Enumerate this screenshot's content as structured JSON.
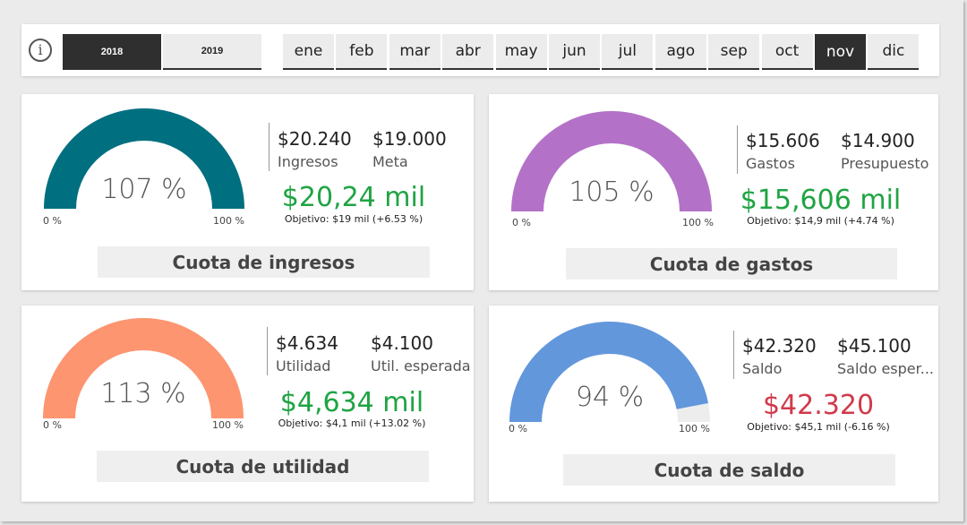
{
  "colors": {
    "ingresos": "#006f7f",
    "gastos": "#b372c7",
    "utilidad": "#fd9570",
    "saldo": "#6297dc",
    "gauge_track": "#ededed",
    "positive": "#1fa443",
    "negative": "#d13a4a"
  },
  "toolbar": {
    "info_icon": "info-icon",
    "years": [
      {
        "label": "2018",
        "selected": true
      },
      {
        "label": "2019",
        "selected": false
      }
    ],
    "months": [
      {
        "label": "ene",
        "selected": false
      },
      {
        "label": "feb",
        "selected": false
      },
      {
        "label": "mar",
        "selected": false
      },
      {
        "label": "abr",
        "selected": false
      },
      {
        "label": "may",
        "selected": false
      },
      {
        "label": "jun",
        "selected": false
      },
      {
        "label": "jul",
        "selected": false
      },
      {
        "label": "ago",
        "selected": false
      },
      {
        "label": "sep",
        "selected": false
      },
      {
        "label": "oct",
        "selected": false
      },
      {
        "label": "nov",
        "selected": true
      },
      {
        "label": "dic",
        "selected": false
      }
    ]
  },
  "cards": {
    "ingresos": {
      "title": "Cuota de ingresos",
      "gauge_pct_label": "107 %",
      "gauge_fill": 1.0,
      "gauge_min": "0 %",
      "gauge_max": "100 %",
      "value": "$20.240",
      "value_label": "Ingresos",
      "target": "$19.000",
      "target_label": "Meta",
      "big_value": "$20,24 mil",
      "big_value_status": "positive",
      "objetivo": "Objetivo: $19 mil (+6.53 %)"
    },
    "gastos": {
      "title": "Cuota de gastos",
      "gauge_pct_label": "105 %",
      "gauge_fill": 1.0,
      "gauge_min": "0 %",
      "gauge_max": "100 %",
      "value": "$15.606",
      "value_label": "Gastos",
      "target": "$14.900",
      "target_label": "Presupuesto",
      "big_value": "$15,606 mil",
      "big_value_status": "positive",
      "objetivo": "Objetivo: $14,9 mil (+4.74 %)"
    },
    "utilidad": {
      "title": "Cuota de utilidad",
      "gauge_pct_label": "113 %",
      "gauge_fill": 1.0,
      "gauge_min": "0 %",
      "gauge_max": "100 %",
      "value": "$4.634",
      "value_label": "Utilidad",
      "target": "$4.100",
      "target_label": "Util. esperada",
      "big_value": "$4,634 mil",
      "big_value_status": "positive",
      "objetivo": "Objetivo: $4,1 mil (+13.02 %)"
    },
    "saldo": {
      "title": "Cuota de saldo",
      "gauge_pct_label": "94 %",
      "gauge_fill": 0.94,
      "gauge_min": "0 %",
      "gauge_max": "100 %",
      "value": "$42.320",
      "value_label": "Saldo",
      "target": "$45.100",
      "target_label": "Saldo esper...",
      "big_value": "$42.320",
      "big_value_status": "negative",
      "objetivo": "Objetivo: $45,1 mil (-6.16 %)"
    }
  }
}
